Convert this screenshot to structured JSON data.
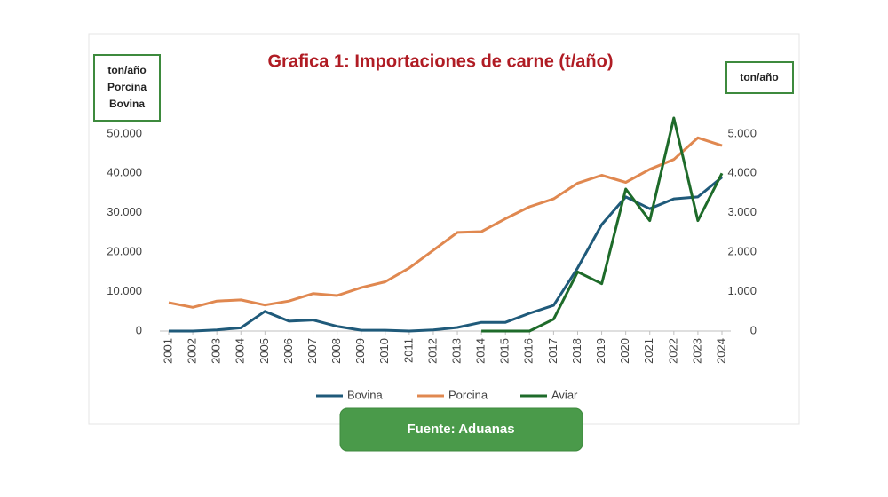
{
  "chart_data": {
    "type": "line",
    "title": "Grafica 1:  Importaciones de carne (t/año)",
    "y_axis_label_lines": [
      "ton/año",
      "Porcina",
      "Bovina"
    ],
    "y2_axis_label": "ton/año",
    "source": "Fuente: Aduanas",
    "legend": "bottom",
    "categories": [
      "2001",
      "2002",
      "2003",
      "2004",
      "2005",
      "2006",
      "2007",
      "2008",
      "2009",
      "2010",
      "2011",
      "2012",
      "2013",
      "2014",
      "2015",
      "2016",
      "2017",
      "2018",
      "2019",
      "2020",
      "2021",
      "2022",
      "2023",
      "2024"
    ],
    "series": [
      {
        "name": "Bovina",
        "color": "#1f5a7a",
        "values": [
          0,
          0,
          300,
          800,
          5000,
          2500,
          2800,
          1200,
          200,
          200,
          0,
          300,
          900,
          2200,
          2200,
          4500,
          6500,
          16000,
          27000,
          34000,
          31000,
          33500,
          34000,
          39000
        ]
      },
      {
        "name": "Porcina",
        "color": "#e08850",
        "values": [
          7200,
          6000,
          7600,
          7900,
          6600,
          7600,
          9500,
          9000,
          11000,
          12500,
          16000,
          20500,
          25000,
          25200,
          28500,
          31500,
          33500,
          37500,
          39500,
          37700,
          41000,
          43500,
          49000,
          47000
        ]
      },
      {
        "name": "Aviar",
        "color": "#1e6b2a",
        "axis": "y2",
        "values": [
          null,
          null,
          null,
          null,
          null,
          null,
          null,
          null,
          null,
          null,
          null,
          null,
          null,
          0,
          0,
          0,
          300,
          1500,
          1200,
          3600,
          2800,
          5400,
          2800,
          4000
        ]
      }
    ],
    "ylim": [
      0,
      55000
    ],
    "yticks": [
      0,
      {
        "value": 10000,
        "label": "10.000"
      },
      {
        "value": 20000,
        "label": "20.000"
      },
      {
        "value": 30000,
        "label": "30.000"
      },
      {
        "value": 40000,
        "label": "40.000"
      },
      {
        "value": 50000,
        "label": "50.000"
      }
    ],
    "y2lim": [
      0,
      5500
    ],
    "y2ticks": [
      0,
      {
        "value": 1000,
        "label": "1.000"
      },
      {
        "value": 2000,
        "label": "2.000"
      },
      {
        "value": 3000,
        "label": "3.000"
      },
      {
        "value": 4000,
        "label": "4.000"
      },
      {
        "value": 5000,
        "label": "5.000"
      }
    ]
  }
}
